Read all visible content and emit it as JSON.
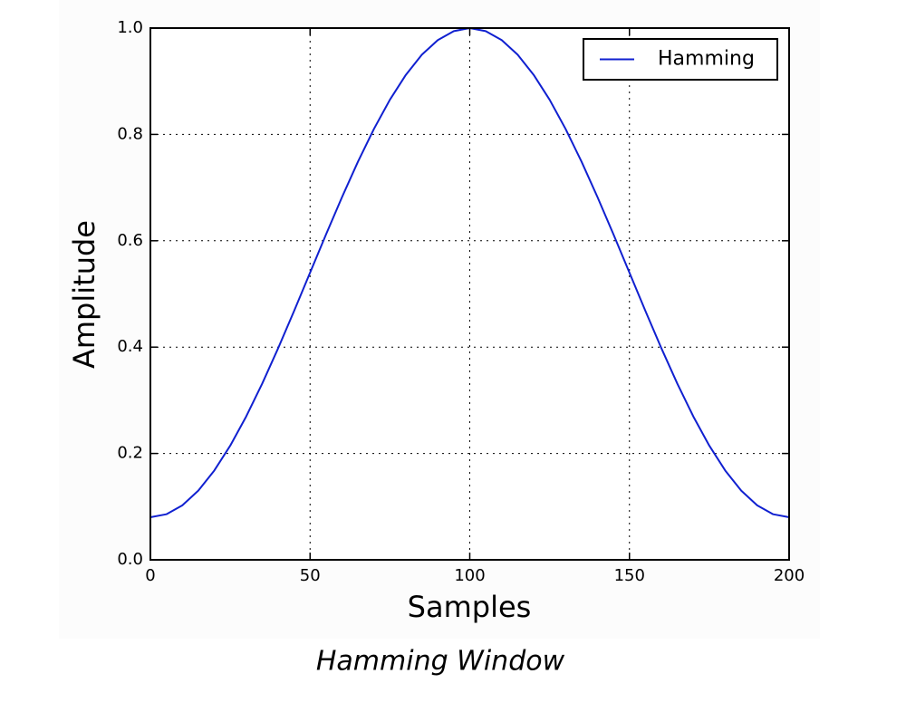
{
  "chart_data": {
    "type": "line",
    "x_label": "Samples",
    "y_label": "Amplitude",
    "caption": "Hamming Window",
    "x": [
      0,
      5,
      10,
      15,
      20,
      25,
      30,
      35,
      40,
      45,
      50,
      55,
      60,
      65,
      70,
      75,
      80,
      85,
      90,
      95,
      100,
      105,
      110,
      115,
      120,
      125,
      130,
      135,
      140,
      145,
      150,
      155,
      160,
      165,
      170,
      175,
      180,
      185,
      190,
      195,
      200
    ],
    "series": [
      {
        "name": "Hamming",
        "color": "#1020d0",
        "values": [
          0.08,
          0.0857,
          0.1025,
          0.1301,
          0.1679,
          0.2147,
          0.2696,
          0.3312,
          0.3979,
          0.468,
          0.54,
          0.612,
          0.6821,
          0.7488,
          0.8104,
          0.8653,
          0.9121,
          0.9499,
          0.9775,
          0.9943,
          1.0,
          0.9943,
          0.9775,
          0.9499,
          0.9121,
          0.8653,
          0.8104,
          0.7488,
          0.6821,
          0.612,
          0.54,
          0.468,
          0.3979,
          0.3312,
          0.2696,
          0.2147,
          0.1679,
          0.1301,
          0.1025,
          0.0857,
          0.08
        ]
      }
    ],
    "xlim": [
      0,
      200
    ],
    "xticks": [
      0,
      50,
      100,
      150,
      200
    ],
    "ylim": [
      0.0,
      1.0
    ],
    "yticks": [
      {
        "value": 0,
        "label": "0.0"
      },
      0.2,
      0.4,
      0.6,
      0.8,
      {
        "value": 1,
        "label": "1.0"
      }
    ],
    "grid": true,
    "legend": "upper right"
  }
}
